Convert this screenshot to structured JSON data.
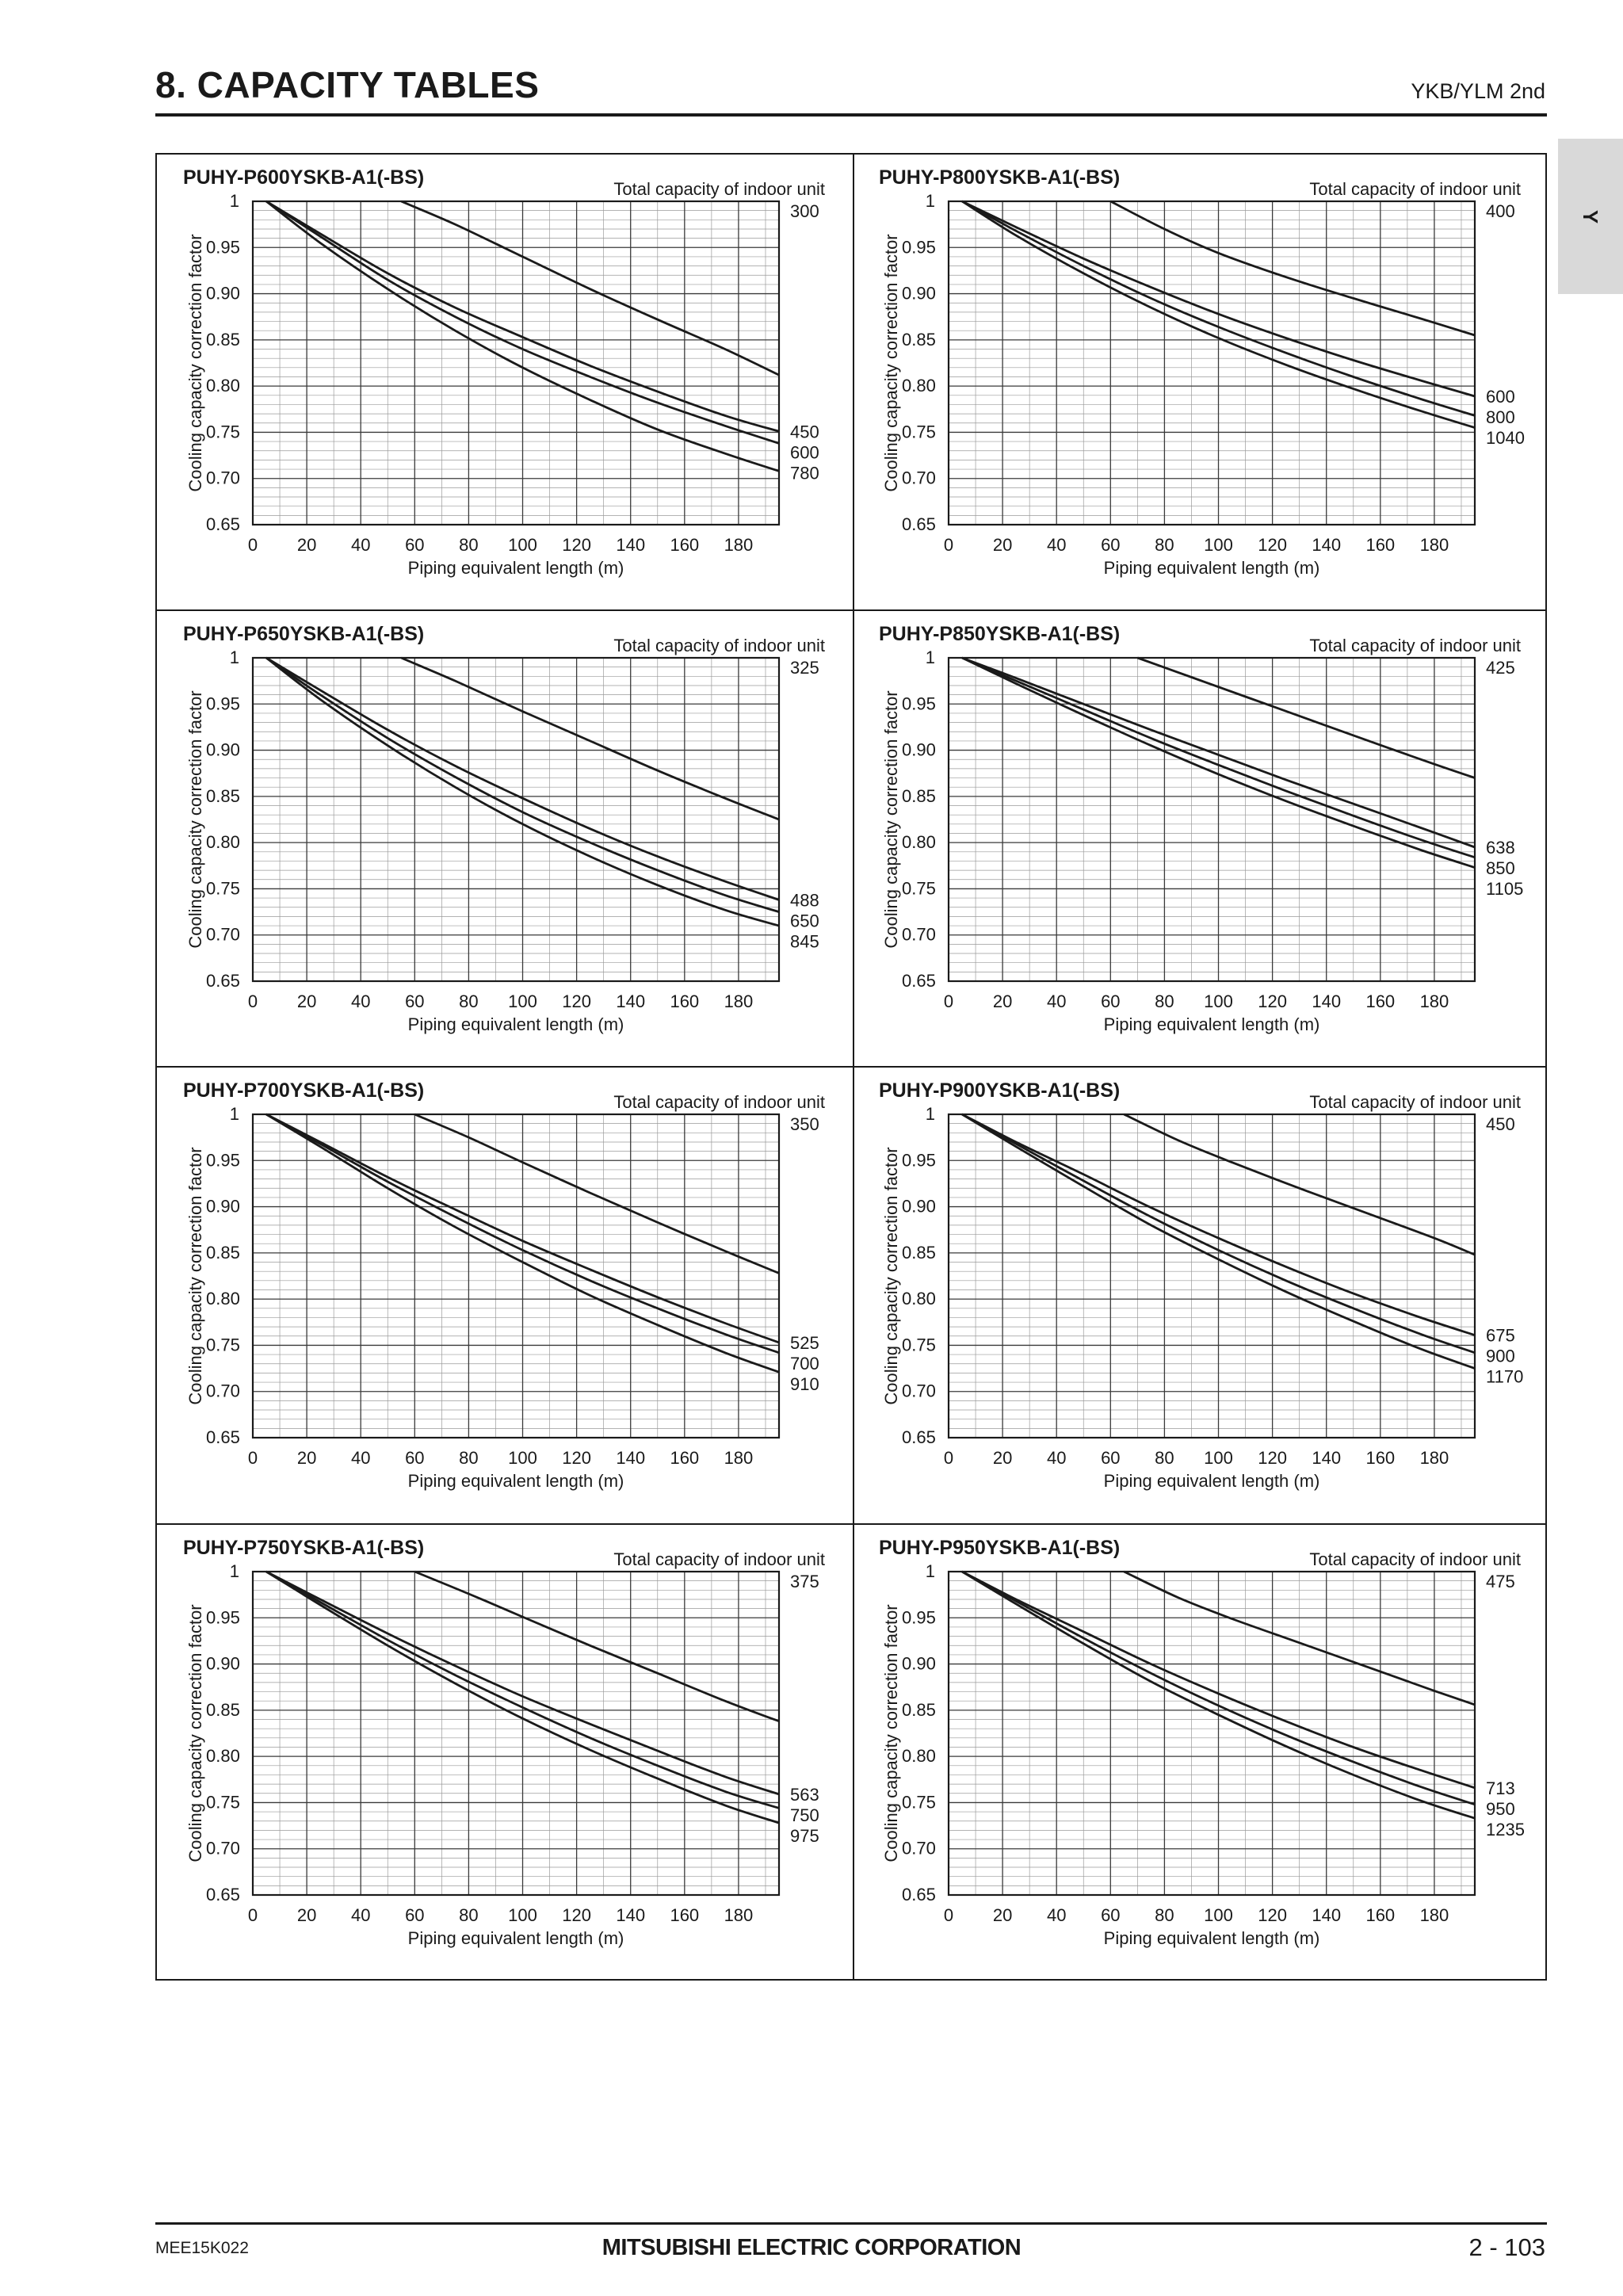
{
  "header": {
    "title": "8. CAPACITY TABLES",
    "series": "YKB/YLM 2nd",
    "side_tab": "Y"
  },
  "footer": {
    "doc_code": "MEE15K022",
    "brand": "MITSUBISHI ELECTRIC CORPORATION",
    "page": "2 - 103"
  },
  "chart_data": [
    {
      "type": "line",
      "title": "PUHY-P600YSKB-A1(-BS)",
      "xlabel": "Piping equivalent length (m)",
      "ylabel": "Cooling capacity correction factor",
      "legend_title": "Total capacity of indoor unit",
      "x_ticks": [
        "0",
        "20",
        "40",
        "60",
        "80",
        "100",
        "120",
        "140",
        "160",
        "180"
      ],
      "y_ticks": [
        "1",
        "0.95",
        "0.90",
        "0.85",
        "0.80",
        "0.75",
        "0.70",
        "0.65"
      ],
      "xlim": [
        0,
        195
      ],
      "ylim": [
        0.65,
        1
      ],
      "grid": true,
      "series": [
        {
          "name": "300",
          "x": [
            55,
            75,
            100,
            125,
            150,
            175,
            195
          ],
          "y": [
            1,
            0.975,
            0.94,
            0.905,
            0.872,
            0.84,
            0.812
          ]
        },
        {
          "name": "450",
          "x": [
            5,
            25,
            50,
            75,
            100,
            125,
            150,
            175,
            195
          ],
          "y": [
            1,
            0.965,
            0.922,
            0.885,
            0.853,
            0.822,
            0.794,
            0.768,
            0.751
          ]
        },
        {
          "name": "600",
          "x": [
            5,
            25,
            50,
            75,
            100,
            125,
            150,
            175,
            195
          ],
          "y": [
            1,
            0.962,
            0.915,
            0.875,
            0.84,
            0.81,
            0.782,
            0.757,
            0.738
          ]
        },
        {
          "name": "780",
          "x": [
            5,
            25,
            50,
            75,
            100,
            125,
            150,
            175,
            195
          ],
          "y": [
            1,
            0.955,
            0.905,
            0.86,
            0.82,
            0.785,
            0.753,
            0.727,
            0.708
          ]
        }
      ]
    },
    {
      "type": "line",
      "title": "PUHY-P800YSKB-A1(-BS)",
      "xlabel": "Piping equivalent length (m)",
      "ylabel": "Cooling capacity correction factor",
      "legend_title": "Total capacity of indoor unit",
      "x_ticks": [
        "0",
        "20",
        "40",
        "60",
        "80",
        "100",
        "120",
        "140",
        "160",
        "180"
      ],
      "y_ticks": [
        "1",
        "0.95",
        "0.90",
        "0.85",
        "0.80",
        "0.75",
        "0.70",
        "0.65"
      ],
      "xlim": [
        0,
        195
      ],
      "ylim": [
        0.65,
        1
      ],
      "grid": true,
      "series": [
        {
          "name": "400",
          "x": [
            60,
            80,
            100,
            125,
            150,
            175,
            195
          ],
          "y": [
            1,
            0.97,
            0.944,
            0.918,
            0.895,
            0.873,
            0.855
          ]
        },
        {
          "name": "600",
          "x": [
            5,
            25,
            50,
            75,
            100,
            125,
            150,
            175,
            195
          ],
          "y": [
            1,
            0.972,
            0.938,
            0.907,
            0.878,
            0.852,
            0.828,
            0.806,
            0.789
          ]
        },
        {
          "name": "800",
          "x": [
            5,
            25,
            50,
            75,
            100,
            125,
            150,
            175,
            195
          ],
          "y": [
            1,
            0.968,
            0.93,
            0.895,
            0.864,
            0.836,
            0.81,
            0.786,
            0.768
          ]
        },
        {
          "name": "1040",
          "x": [
            5,
            25,
            50,
            75,
            100,
            125,
            150,
            175,
            195
          ],
          "y": [
            1,
            0.963,
            0.922,
            0.885,
            0.852,
            0.823,
            0.797,
            0.773,
            0.755
          ]
        }
      ]
    },
    {
      "type": "line",
      "title": "PUHY-P650YSKB-A1(-BS)",
      "xlabel": "Piping equivalent length (m)",
      "ylabel": "Cooling capacity correction factor",
      "legend_title": "Total capacity of indoor unit",
      "x_ticks": [
        "0",
        "20",
        "40",
        "60",
        "80",
        "100",
        "120",
        "140",
        "160",
        "180"
      ],
      "y_ticks": [
        "1",
        "0.95",
        "0.90",
        "0.85",
        "0.80",
        "0.75",
        "0.70",
        "0.65"
      ],
      "xlim": [
        0,
        195
      ],
      "ylim": [
        0.65,
        1
      ],
      "grid": true,
      "series": [
        {
          "name": "325",
          "x": [
            55,
            75,
            100,
            125,
            150,
            175,
            195
          ],
          "y": [
            1,
            0.975,
            0.942,
            0.91,
            0.878,
            0.848,
            0.825
          ]
        },
        {
          "name": "488",
          "x": [
            5,
            25,
            50,
            75,
            100,
            125,
            150,
            175,
            195
          ],
          "y": [
            1,
            0.965,
            0.922,
            0.883,
            0.848,
            0.815,
            0.785,
            0.758,
            0.738
          ]
        },
        {
          "name": "650",
          "x": [
            5,
            25,
            50,
            75,
            100,
            125,
            150,
            175,
            195
          ],
          "y": [
            1,
            0.96,
            0.913,
            0.871,
            0.833,
            0.8,
            0.77,
            0.743,
            0.725
          ]
        },
        {
          "name": "845",
          "x": [
            5,
            25,
            50,
            75,
            100,
            125,
            150,
            175,
            195
          ],
          "y": [
            1,
            0.955,
            0.905,
            0.86,
            0.82,
            0.785,
            0.754,
            0.727,
            0.71
          ]
        }
      ]
    },
    {
      "type": "line",
      "title": "PUHY-P850YSKB-A1(-BS)",
      "xlabel": "Piping equivalent length (m)",
      "ylabel": "Cooling capacity correction factor",
      "legend_title": "Total capacity of indoor unit",
      "x_ticks": [
        "0",
        "20",
        "40",
        "60",
        "80",
        "100",
        "120",
        "140",
        "160",
        "180"
      ],
      "y_ticks": [
        "1",
        "0.95",
        "0.90",
        "0.85",
        "0.80",
        "0.75",
        "0.70",
        "0.65"
      ],
      "xlim": [
        0,
        195
      ],
      "ylim": [
        0.65,
        1
      ],
      "grid": true,
      "series": [
        {
          "name": "425",
          "x": [
            70,
            90,
            110,
            130,
            150,
            175,
            195
          ],
          "y": [
            1,
            0.979,
            0.958,
            0.937,
            0.916,
            0.89,
            0.87
          ]
        },
        {
          "name": "638",
          "x": [
            5,
            25,
            50,
            75,
            100,
            125,
            150,
            175,
            195
          ],
          "y": [
            1,
            0.978,
            0.95,
            0.922,
            0.895,
            0.868,
            0.842,
            0.816,
            0.795
          ]
        },
        {
          "name": "850",
          "x": [
            5,
            25,
            50,
            75,
            100,
            125,
            150,
            175,
            195
          ],
          "y": [
            1,
            0.975,
            0.944,
            0.913,
            0.884,
            0.856,
            0.829,
            0.803,
            0.784
          ]
        },
        {
          "name": "1105",
          "x": [
            5,
            25,
            50,
            75,
            100,
            125,
            150,
            175,
            195
          ],
          "y": [
            1,
            0.972,
            0.938,
            0.905,
            0.874,
            0.845,
            0.818,
            0.792,
            0.773
          ]
        }
      ]
    },
    {
      "type": "line",
      "title": "PUHY-P700YSKB-A1(-BS)",
      "xlabel": "Piping equivalent length (m)",
      "ylabel": "Cooling capacity correction factor",
      "legend_title": "Total capacity of indoor unit",
      "x_ticks": [
        "0",
        "20",
        "40",
        "60",
        "80",
        "100",
        "120",
        "140",
        "160",
        "180"
      ],
      "y_ticks": [
        "1",
        "0.95",
        "0.90",
        "0.85",
        "0.80",
        "0.75",
        "0.70",
        "0.65"
      ],
      "xlim": [
        0,
        195
      ],
      "ylim": [
        0.65,
        1
      ],
      "grid": true,
      "series": [
        {
          "name": "350",
          "x": [
            60,
            80,
            100,
            125,
            150,
            175,
            195
          ],
          "y": [
            1,
            0.975,
            0.948,
            0.915,
            0.883,
            0.852,
            0.828
          ]
        },
        {
          "name": "525",
          "x": [
            5,
            25,
            50,
            75,
            100,
            125,
            150,
            175,
            195
          ],
          "y": [
            1,
            0.97,
            0.932,
            0.897,
            0.863,
            0.832,
            0.802,
            0.774,
            0.753
          ]
        },
        {
          "name": "700",
          "x": [
            5,
            25,
            50,
            75,
            100,
            125,
            150,
            175,
            195
          ],
          "y": [
            1,
            0.968,
            0.927,
            0.889,
            0.853,
            0.82,
            0.79,
            0.762,
            0.742
          ]
        },
        {
          "name": "910",
          "x": [
            5,
            25,
            50,
            75,
            100,
            125,
            150,
            175,
            195
          ],
          "y": [
            1,
            0.965,
            0.92,
            0.878,
            0.84,
            0.804,
            0.772,
            0.742,
            0.721
          ]
        }
      ]
    },
    {
      "type": "line",
      "title": "PUHY-P900YSKB-A1(-BS)",
      "xlabel": "Piping equivalent length (m)",
      "ylabel": "Cooling capacity correction factor",
      "legend_title": "Total capacity of indoor unit",
      "x_ticks": [
        "0",
        "20",
        "40",
        "60",
        "80",
        "100",
        "120",
        "140",
        "160",
        "180"
      ],
      "y_ticks": [
        "1",
        "0.95",
        "0.90",
        "0.85",
        "0.80",
        "0.75",
        "0.70",
        "0.65"
      ],
      "xlim": [
        0,
        195
      ],
      "ylim": [
        0.65,
        1
      ],
      "grid": true,
      "series": [
        {
          "name": "450",
          "x": [
            65,
            85,
            105,
            130,
            155,
            180,
            195
          ],
          "y": [
            1,
            0.972,
            0.948,
            0.92,
            0.893,
            0.866,
            0.848
          ]
        },
        {
          "name": "675",
          "x": [
            5,
            25,
            50,
            75,
            100,
            125,
            150,
            175,
            195
          ],
          "y": [
            1,
            0.97,
            0.935,
            0.899,
            0.866,
            0.835,
            0.806,
            0.78,
            0.761
          ]
        },
        {
          "name": "900",
          "x": [
            5,
            25,
            50,
            75,
            100,
            125,
            150,
            175,
            195
          ],
          "y": [
            1,
            0.968,
            0.928,
            0.889,
            0.853,
            0.82,
            0.79,
            0.762,
            0.742
          ]
        },
        {
          "name": "1170",
          "x": [
            5,
            25,
            50,
            75,
            100,
            125,
            150,
            175,
            195
          ],
          "y": [
            1,
            0.965,
            0.922,
            0.88,
            0.843,
            0.808,
            0.776,
            0.746,
            0.725
          ]
        }
      ]
    },
    {
      "type": "line",
      "title": "PUHY-P750YSKB-A1(-BS)",
      "xlabel": "Piping equivalent length (m)",
      "ylabel": "Cooling capacity correction factor",
      "legend_title": "Total capacity of indoor unit",
      "x_ticks": [
        "0",
        "20",
        "40",
        "60",
        "80",
        "100",
        "120",
        "140",
        "160",
        "180"
      ],
      "y_ticks": [
        "1",
        "0.95",
        "0.90",
        "0.85",
        "0.80",
        "0.75",
        "0.70",
        "0.65"
      ],
      "xlim": [
        0,
        195
      ],
      "ylim": [
        0.65,
        1
      ],
      "grid": true,
      "series": [
        {
          "name": "375",
          "x": [
            60,
            80,
            100,
            125,
            150,
            175,
            195
          ],
          "y": [
            1,
            0.976,
            0.951,
            0.92,
            0.89,
            0.86,
            0.838
          ]
        },
        {
          "name": "563",
          "x": [
            5,
            25,
            50,
            75,
            100,
            125,
            150,
            175,
            195
          ],
          "y": [
            1,
            0.97,
            0.933,
            0.898,
            0.865,
            0.835,
            0.806,
            0.778,
            0.759
          ]
        },
        {
          "name": "750",
          "x": [
            5,
            25,
            50,
            75,
            100,
            125,
            150,
            175,
            195
          ],
          "y": [
            1,
            0.967,
            0.926,
            0.888,
            0.853,
            0.82,
            0.79,
            0.762,
            0.744
          ]
        },
        {
          "name": "975",
          "x": [
            5,
            25,
            50,
            75,
            100,
            125,
            150,
            175,
            195
          ],
          "y": [
            1,
            0.964,
            0.92,
            0.879,
            0.841,
            0.807,
            0.776,
            0.747,
            0.728
          ]
        }
      ]
    },
    {
      "type": "line",
      "title": "PUHY-P950YSKB-A1(-BS)",
      "xlabel": "Piping equivalent length (m)",
      "ylabel": "Cooling capacity correction factor",
      "legend_title": "Total capacity of indoor unit",
      "x_ticks": [
        "0",
        "20",
        "40",
        "60",
        "80",
        "100",
        "120",
        "140",
        "160",
        "180"
      ],
      "y_ticks": [
        "1",
        "0.95",
        "0.90",
        "0.85",
        "0.80",
        "0.75",
        "0.70",
        "0.65"
      ],
      "xlim": [
        0,
        195
      ],
      "ylim": [
        0.65,
        1
      ],
      "grid": true,
      "series": [
        {
          "name": "475",
          "x": [
            65,
            85,
            105,
            130,
            155,
            180,
            195
          ],
          "y": [
            1,
            0.972,
            0.949,
            0.923,
            0.897,
            0.871,
            0.856
          ]
        },
        {
          "name": "713",
          "x": [
            5,
            25,
            50,
            75,
            100,
            125,
            150,
            175,
            195
          ],
          "y": [
            1,
            0.97,
            0.935,
            0.9,
            0.868,
            0.838,
            0.81,
            0.785,
            0.766
          ]
        },
        {
          "name": "950",
          "x": [
            5,
            25,
            50,
            75,
            100,
            125,
            150,
            175,
            195
          ],
          "y": [
            1,
            0.968,
            0.928,
            0.89,
            0.855,
            0.823,
            0.794,
            0.767,
            0.748
          ]
        },
        {
          "name": "1235",
          "x": [
            5,
            25,
            50,
            75,
            100,
            125,
            150,
            175,
            195
          ],
          "y": [
            1,
            0.965,
            0.922,
            0.881,
            0.845,
            0.811,
            0.78,
            0.752,
            0.733
          ]
        }
      ]
    }
  ]
}
